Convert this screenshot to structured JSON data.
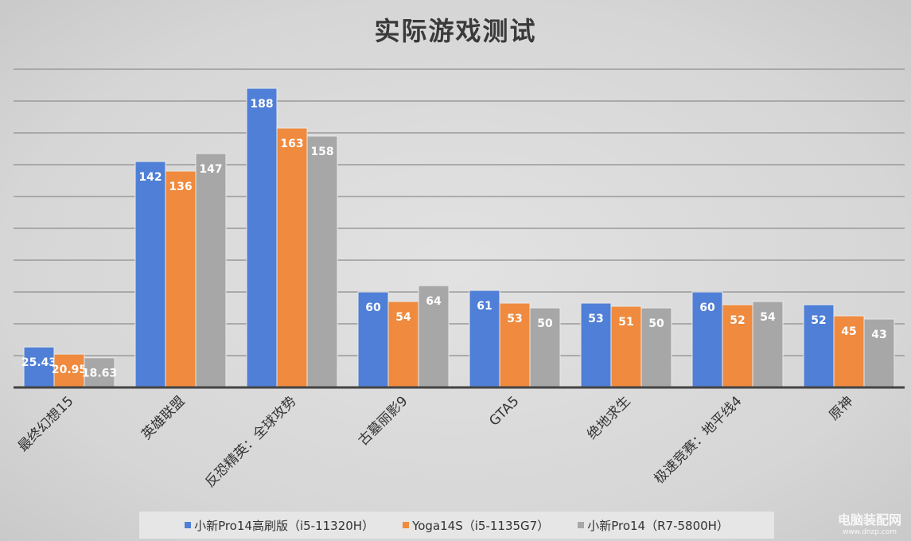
{
  "chart_data": {
    "type": "bar",
    "title": "实际游戏测试",
    "categories": [
      "最终幻想15",
      "英雄联盟",
      "反恐精英：全球攻势",
      "古墓丽影9",
      "GTA5",
      "绝地求生",
      "极速竞赛：地平线4",
      "原神"
    ],
    "series": [
      {
        "name": "小新Pro14高刷版（i5-11320H）",
        "color": "#4f7fd6",
        "values": [
          25.43,
          142,
          188,
          60,
          61,
          53,
          60,
          52
        ]
      },
      {
        "name": "Yoga14S（i5-1135G7）",
        "color": "#ef8a3e",
        "values": [
          20.95,
          136,
          163,
          54,
          53,
          51,
          52,
          45
        ]
      },
      {
        "name": "小新Pro14（R7-5800H）",
        "color": "#a7a7a7",
        "values": [
          18.63,
          147,
          158,
          64,
          50,
          50,
          54,
          43
        ]
      }
    ],
    "ylim": [
      0,
      200
    ],
    "grid": true,
    "legend": "bottom",
    "xlabel": "",
    "ylabel": ""
  },
  "watermark": {
    "name": "电脑装配网",
    "url": "www.dnzp.com"
  }
}
